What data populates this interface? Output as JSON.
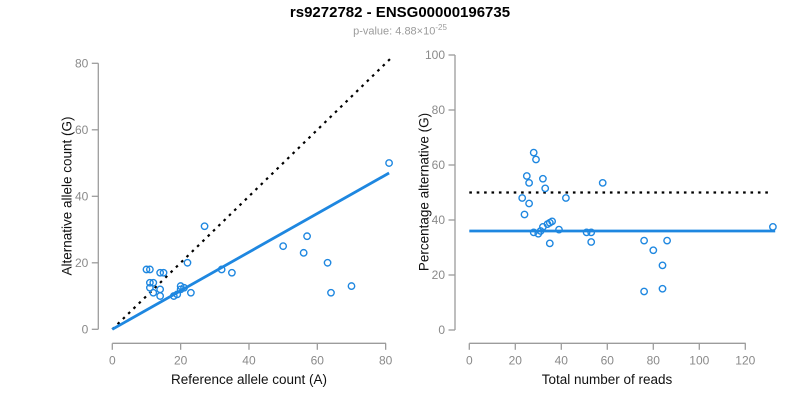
{
  "title": "rs9272782 - ENSG00000196735",
  "subtitle": {
    "prefix": "p-value: 4.88×10",
    "exponent": "-25"
  },
  "colors": {
    "point_blue": "#1e87e0",
    "line_blue": "#1e87e0",
    "line_black": "#000000",
    "axis_gray": "#9c9c9c",
    "tick_label_gray": "#8a8a8a"
  },
  "chart_data": [
    {
      "type": "scatter",
      "name": "allele-counts",
      "xlabel": "Reference allele count (A)",
      "ylabel": "Alternative allele count (G)",
      "xlim": [
        0,
        82
      ],
      "ylim": [
        0,
        82
      ],
      "xticks": [
        0,
        20,
        40,
        60,
        80
      ],
      "yticks": [
        0,
        20,
        40,
        60,
        80
      ],
      "grid": false,
      "points": [
        [
          10,
          18
        ],
        [
          11,
          18
        ],
        [
          14,
          17
        ],
        [
          15,
          17
        ],
        [
          11,
          14
        ],
        [
          12,
          14
        ],
        [
          11,
          12.5
        ],
        [
          12,
          11
        ],
        [
          14,
          12
        ],
        [
          14,
          10
        ],
        [
          22,
          20
        ],
        [
          18,
          10
        ],
        [
          19,
          10.5
        ],
        [
          20,
          12
        ],
        [
          20,
          13
        ],
        [
          21,
          12.5
        ],
        [
          23,
          11
        ],
        [
          27,
          31
        ],
        [
          32,
          18
        ],
        [
          35,
          17
        ],
        [
          50,
          25
        ],
        [
          56,
          23
        ],
        [
          57,
          28
        ],
        [
          63,
          20
        ],
        [
          64,
          11
        ],
        [
          70,
          13
        ],
        [
          81,
          50
        ]
      ],
      "lines": [
        {
          "name": "identity-line",
          "x1": 0,
          "y1": 0,
          "x2": 82,
          "y2": 82,
          "style": "dotted",
          "color": "#000000",
          "width": 2.2
        },
        {
          "name": "regression-line",
          "x1": 0,
          "y1": 0,
          "x2": 81,
          "y2": 47,
          "style": "solid",
          "color": "#1e87e0",
          "width": 2.8
        }
      ]
    },
    {
      "type": "scatter",
      "name": "percentage-vs-reads",
      "xlabel": "Total number of reads",
      "ylabel": "Percentage alternative (G)",
      "xlim": [
        0,
        133
      ],
      "ylim": [
        0,
        100
      ],
      "xticks": [
        0,
        20,
        40,
        60,
        80,
        100,
        120
      ],
      "yticks": [
        0,
        20,
        40,
        60,
        80,
        100
      ],
      "grid": false,
      "points": [
        [
          28,
          64.5
        ],
        [
          29,
          62
        ],
        [
          25,
          56
        ],
        [
          26,
          53.5
        ],
        [
          32,
          55
        ],
        [
          33,
          51.5
        ],
        [
          23,
          48
        ],
        [
          26,
          46
        ],
        [
          42,
          48
        ],
        [
          24,
          42
        ],
        [
          32,
          37.5
        ],
        [
          34,
          38.5
        ],
        [
          35,
          39
        ],
        [
          36,
          39.5
        ],
        [
          28,
          35.5
        ],
        [
          30,
          35
        ],
        [
          31,
          36
        ],
        [
          39,
          36.5
        ],
        [
          51,
          35.5
        ],
        [
          53,
          35.5
        ],
        [
          53,
          32
        ],
        [
          35,
          31.5
        ],
        [
          58,
          53.5
        ],
        [
          76,
          32.5
        ],
        [
          86,
          32.5
        ],
        [
          80,
          29
        ],
        [
          84,
          23.5
        ],
        [
          76,
          14
        ],
        [
          84,
          15
        ],
        [
          132,
          37.5
        ]
      ],
      "lines": [
        {
          "name": "fifty-percent-line",
          "x1": 0,
          "y1": 50,
          "x2": 130,
          "y2": 50,
          "style": "dotted",
          "color": "#000000",
          "width": 2.2
        },
        {
          "name": "mean-percentage-line",
          "x1": 0,
          "y1": 36,
          "x2": 133,
          "y2": 36,
          "style": "solid",
          "color": "#1e87e0",
          "width": 2.8
        }
      ]
    }
  ]
}
